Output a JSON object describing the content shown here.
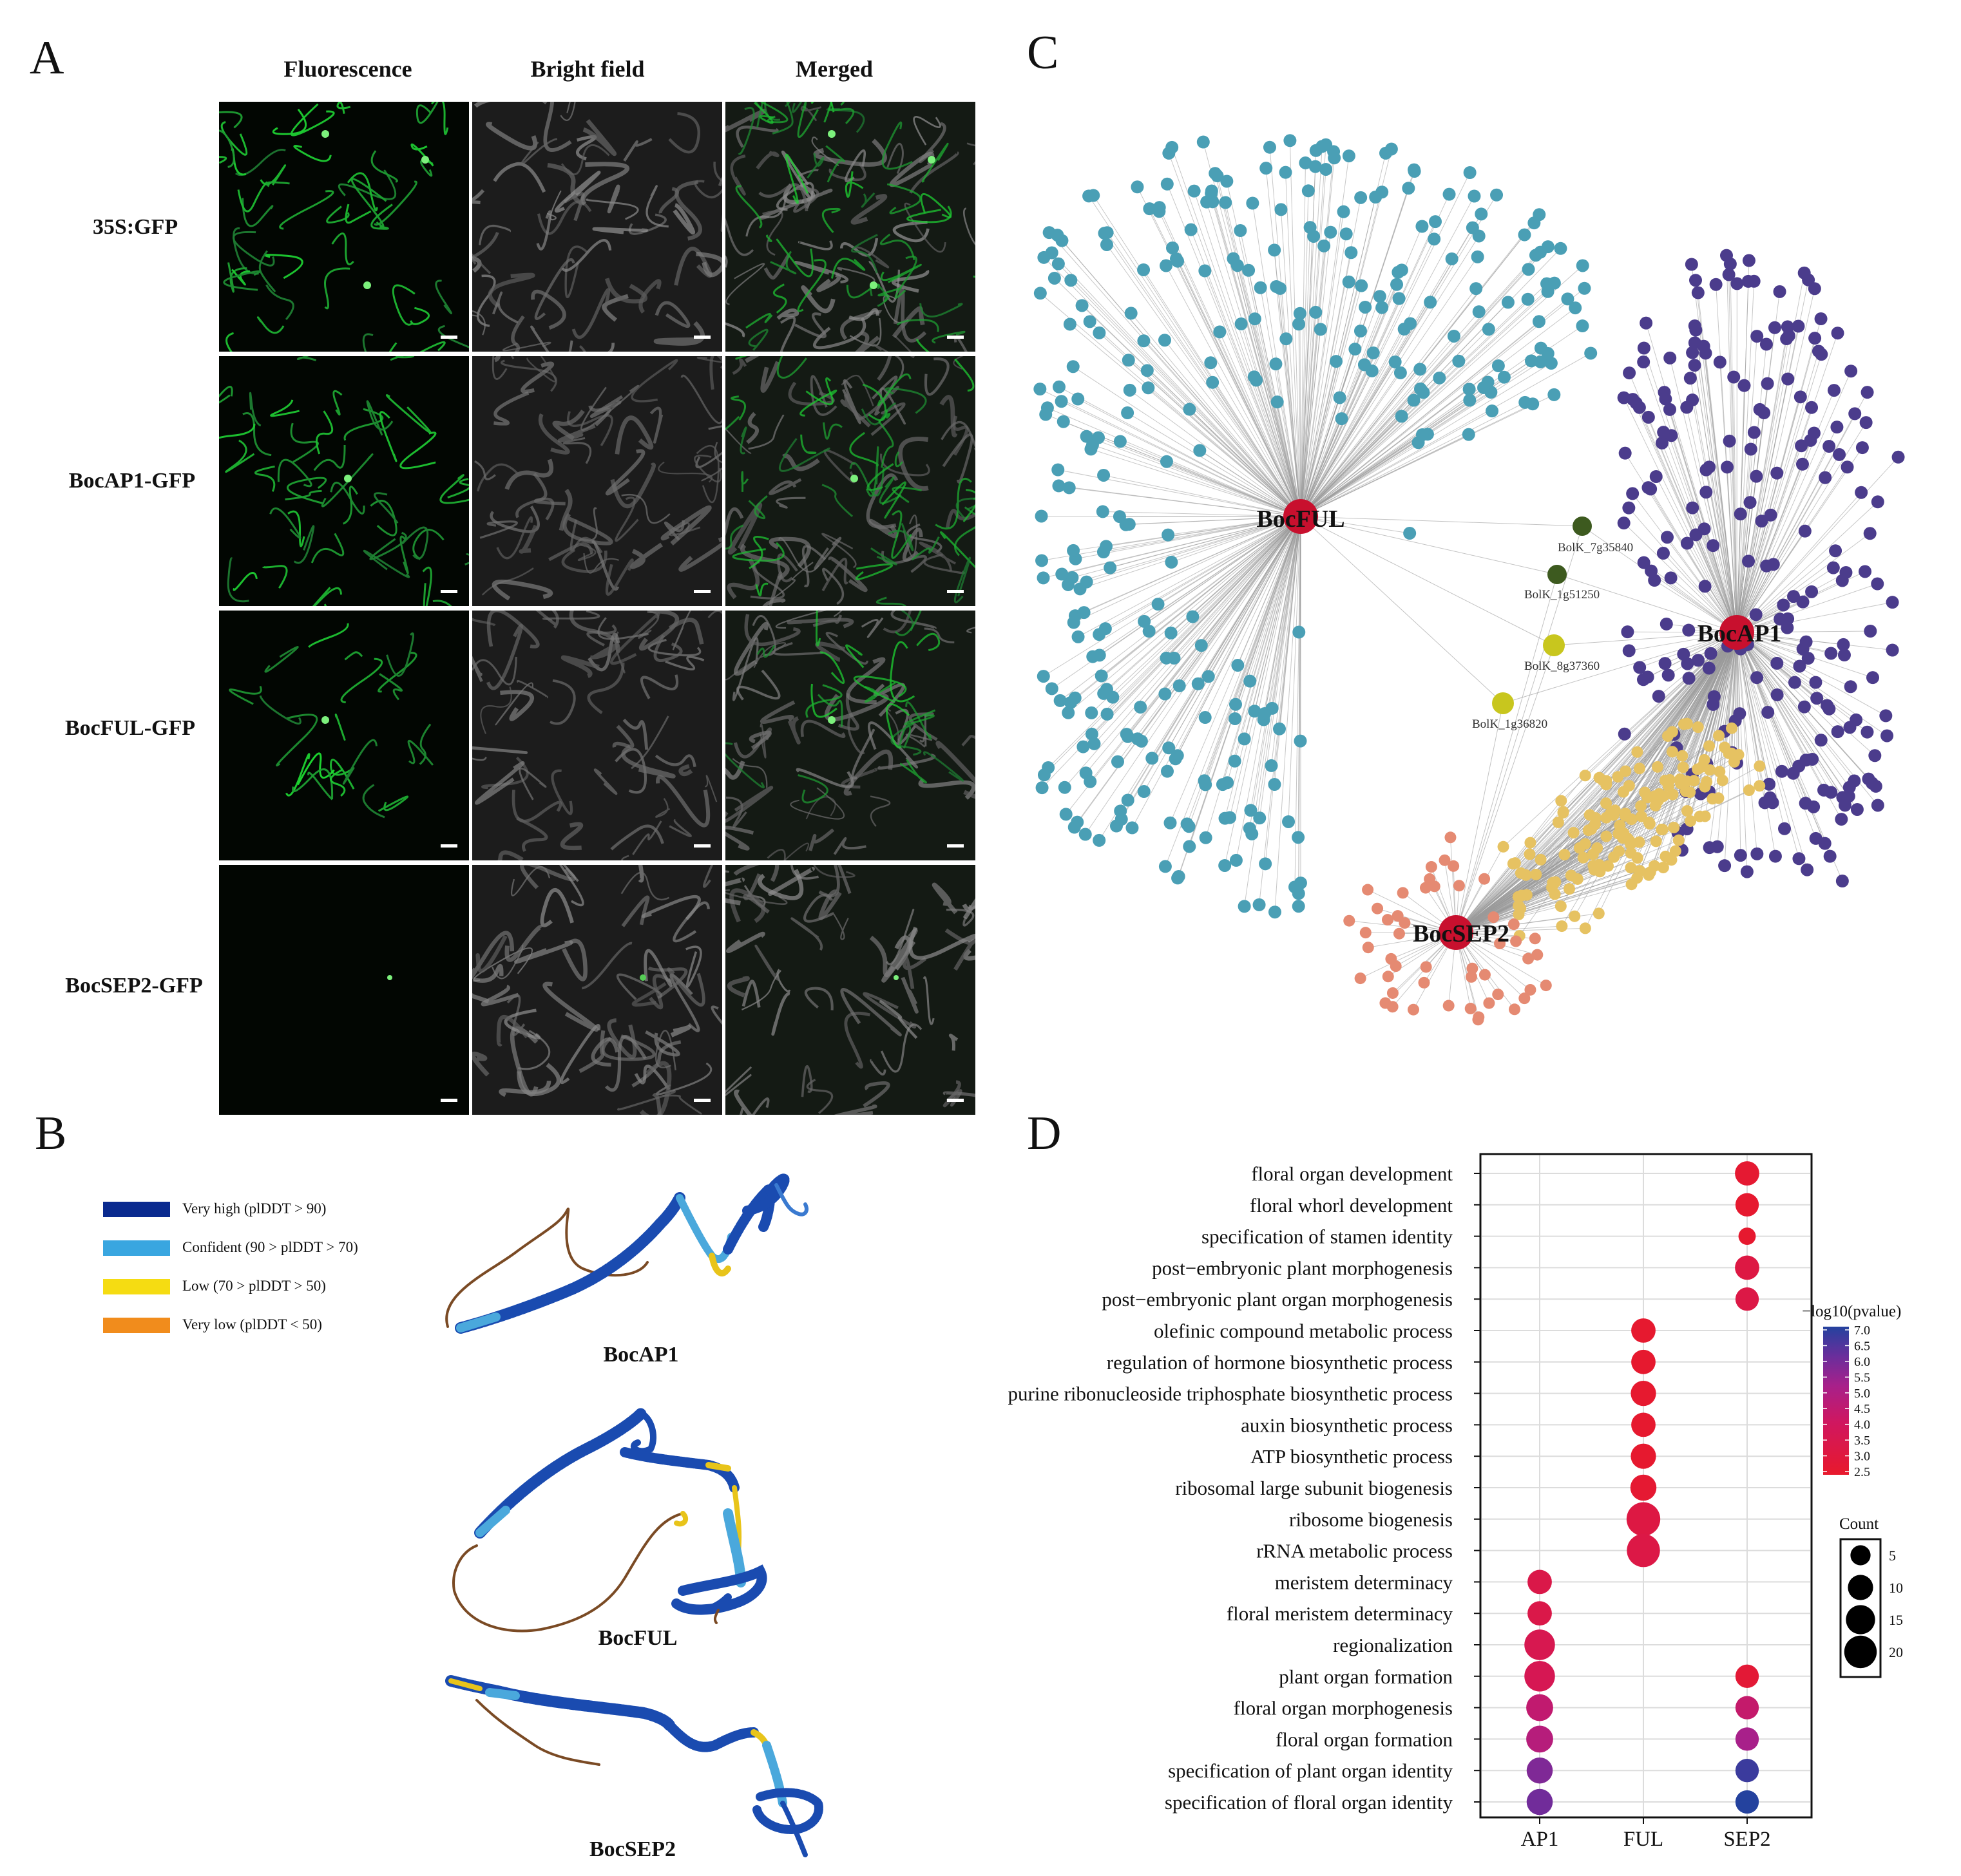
{
  "panels": {
    "a": {
      "letter": "A",
      "columns": [
        "Fluorescence",
        "Bright field",
        "Merged"
      ],
      "rows": [
        "35S:GFP",
        "BocAP1-GFP",
        "BocFUL-GFP",
        "BocSEP2-GFP"
      ]
    },
    "b": {
      "letter": "B",
      "legend": [
        {
          "label": "Very high (plDDT > 90)",
          "color": "#0a2a8f"
        },
        {
          "label": "Confident (90 > plDDT > 70)",
          "color": "#39a6e0"
        },
        {
          "label": "Low (70 > plDDT > 50)",
          "color": "#f5dc12"
        },
        {
          "label": "Very low (plDDT < 50)",
          "color": "#f18c1c"
        }
      ],
      "proteins": [
        "BocAP1",
        "BocFUL",
        "BocSEP2"
      ]
    },
    "c": {
      "letter": "C",
      "hubs": [
        "BocFUL",
        "BocAP1",
        "BocSEP2"
      ],
      "connectors": [
        "BolK_7g35840",
        "BolK_1g51250",
        "BolK_8g37360",
        "BolK_1g36820"
      ],
      "colors": {
        "ful": "#4a9fb5",
        "ap1": "#4b3c8c",
        "sep2": "#e58a72",
        "shared": "#e6c262",
        "hub": "#c8102e",
        "dark": "#3d5a1f",
        "olive": "#c8c61e"
      }
    },
    "d": {
      "letter": "D"
    }
  },
  "chart_data": {
    "type": "scatter",
    "title": "",
    "categories_x": [
      "AP1",
      "FUL",
      "SEP2"
    ],
    "terms": [
      "floral organ development",
      "floral whorl development",
      "specification of stamen identity",
      "post−embryonic plant morphogenesis",
      "post−embryonic plant organ morphogenesis",
      "olefinic compound metabolic process",
      "regulation of hormone biosynthetic process",
      "purine ribonucleoside triphosphate biosynthetic process",
      "auxin biosynthetic process",
      "ATP biosynthetic process",
      "ribosomal large subunit biogenesis",
      "ribosome biogenesis",
      "rRNA metabolic process",
      "meristem determinacy",
      "floral meristem determinacy",
      "regionalization",
      "plant organ formation",
      "floral organ morphogenesis",
      "floral organ formation",
      "specification of plant organ identity",
      "specification of floral organ identity"
    ],
    "points": [
      {
        "term": "floral organ development",
        "group": "SEP2",
        "count": 9,
        "neglog10p": 2.7
      },
      {
        "term": "floral whorl development",
        "group": "SEP2",
        "count": 8,
        "neglog10p": 2.6
      },
      {
        "term": "specification of stamen identity",
        "group": "SEP2",
        "count": 3,
        "neglog10p": 2.6
      },
      {
        "term": "post−embryonic plant morphogenesis",
        "group": "SEP2",
        "count": 9,
        "neglog10p": 3.2
      },
      {
        "term": "post−embryonic plant organ morphogenesis",
        "group": "SEP2",
        "count": 8,
        "neglog10p": 3.3
      },
      {
        "term": "olefinic compound metabolic process",
        "group": "FUL",
        "count": 9,
        "neglog10p": 2.6
      },
      {
        "term": "regulation of hormone biosynthetic process",
        "group": "FUL",
        "count": 9,
        "neglog10p": 2.6
      },
      {
        "term": "purine ribonucleoside triphosphate biosynthetic process",
        "group": "FUL",
        "count": 10,
        "neglog10p": 2.6
      },
      {
        "term": "auxin biosynthetic process",
        "group": "FUL",
        "count": 9,
        "neglog10p": 2.6
      },
      {
        "term": "ATP biosynthetic process",
        "group": "FUL",
        "count": 10,
        "neglog10p": 2.6
      },
      {
        "term": "ribosomal large subunit biogenesis",
        "group": "FUL",
        "count": 11,
        "neglog10p": 2.7
      },
      {
        "term": "ribosome biogenesis",
        "group": "FUL",
        "count": 22,
        "neglog10p": 3.2
      },
      {
        "term": "rRNA metabolic process",
        "group": "FUL",
        "count": 21,
        "neglog10p": 3.3
      },
      {
        "term": "meristem determinacy",
        "group": "AP1",
        "count": 9,
        "neglog10p": 3.4
      },
      {
        "term": "floral meristem determinacy",
        "group": "AP1",
        "count": 9,
        "neglog10p": 3.4
      },
      {
        "term": "regionalization",
        "group": "AP1",
        "count": 17,
        "neglog10p": 3.6
      },
      {
        "term": "plant organ formation",
        "group": "AP1",
        "count": 17,
        "neglog10p": 3.7
      },
      {
        "term": "floral organ morphogenesis",
        "group": "AP1",
        "count": 12,
        "neglog10p": 4.5
      },
      {
        "term": "floral organ formation",
        "group": "AP1",
        "count": 12,
        "neglog10p": 4.8
      },
      {
        "term": "specification of plant organ identity",
        "group": "AP1",
        "count": 11,
        "neglog10p": 5.8
      },
      {
        "term": "specification of floral organ identity",
        "group": "AP1",
        "count": 11,
        "neglog10p": 6.0
      },
      {
        "term": "plant organ formation",
        "group": "SEP2",
        "count": 8,
        "neglog10p": 2.8
      },
      {
        "term": "floral organ morphogenesis",
        "group": "SEP2",
        "count": 8,
        "neglog10p": 4.4
      },
      {
        "term": "floral organ formation",
        "group": "SEP2",
        "count": 8,
        "neglog10p": 5.2
      },
      {
        "term": "specification of plant organ identity",
        "group": "SEP2",
        "count": 8,
        "neglog10p": 6.7
      },
      {
        "term": "specification of floral organ identity",
        "group": "SEP2",
        "count": 8,
        "neglog10p": 7.2
      }
    ],
    "color_legend": {
      "title": "−log10(pvalue)",
      "ticks": [
        "7.0",
        "6.5",
        "6.0",
        "5.5",
        "5.0",
        "4.5",
        "4.0",
        "3.5",
        "3.0",
        "2.5"
      ],
      "range": [
        2.5,
        7.0
      ],
      "low_color": "#e8192c",
      "high_color": "#24429e"
    },
    "size_legend": {
      "title": "Count",
      "ticks": [
        "5",
        "10",
        "15",
        "20"
      ]
    },
    "grid": true
  }
}
